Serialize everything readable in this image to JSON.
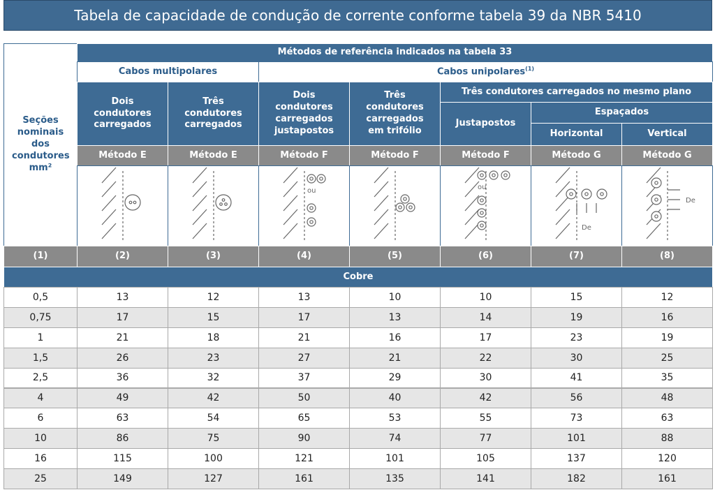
{
  "title": "Tabela de capacidade de condução de corrente conforme tabela 39 da NBR 5410",
  "table": {
    "header": {
      "reference": "Métodos de referência indicados na tabela 33",
      "sections": "Seções nominais dos condutores",
      "unit": "mm²",
      "section_number": "(1)",
      "multipolar": "Cabos multipolares",
      "unipolar": "Cabos unipolares",
      "unipolar_note": "(1)",
      "same_plane": "Três condutores carregados no mesmo plano",
      "spaced": "Espaçados",
      "columns": [
        {
          "label": "Dois condutores carregados",
          "method": "Método E",
          "number": "(2)"
        },
        {
          "label": "Três condutores carregados",
          "method": "Método E",
          "number": "(3)"
        },
        {
          "label": "Dois condutores carregados justapostos",
          "method": "Método F",
          "number": "(4)"
        },
        {
          "label": "Três condutores carregados em trifólio",
          "method": "Método F",
          "number": "(5)"
        },
        {
          "label": "Justapostos",
          "method": "Método F",
          "number": "(6)"
        },
        {
          "label": "Horizontal",
          "method": "Método G",
          "number": "(7)"
        },
        {
          "label": "Vertical",
          "method": "Método G",
          "number": "(8)"
        }
      ],
      "icon_text": {
        "or": "ou",
        "spacing": "De"
      }
    },
    "material": "Cobre",
    "rows": [
      [
        "0,5",
        13,
        12,
        13,
        10,
        10,
        15,
        12
      ],
      [
        "0,75",
        17,
        15,
        17,
        13,
        14,
        19,
        16
      ],
      [
        "1",
        21,
        18,
        21,
        16,
        17,
        23,
        19
      ],
      [
        "1,5",
        26,
        23,
        27,
        21,
        22,
        30,
        25
      ],
      [
        "2,5",
        36,
        32,
        37,
        29,
        30,
        41,
        35
      ],
      [
        "4",
        49,
        42,
        50,
        40,
        42,
        56,
        48
      ],
      [
        "6",
        63,
        54,
        65,
        53,
        55,
        73,
        63
      ],
      [
        "10",
        86,
        75,
        90,
        74,
        77,
        101,
        88
      ],
      [
        "16",
        115,
        100,
        121,
        101,
        105,
        137,
        120
      ],
      [
        "25",
        149,
        127,
        161,
        135,
        141,
        182,
        161
      ]
    ]
  }
}
